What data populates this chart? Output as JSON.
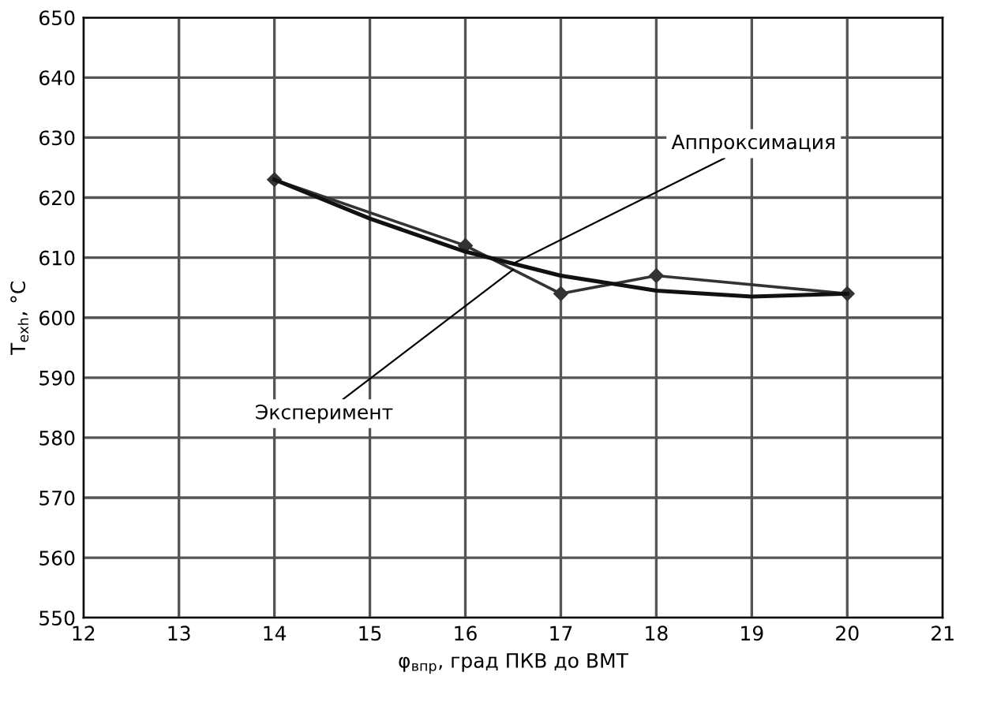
{
  "chart_data": {
    "type": "line",
    "xlabel": "φ$_{впр}$, град ПКВ до ВМТ",
    "ylabel": "T$_{exh}$, °C",
    "xlim": [
      12,
      21
    ],
    "xticks": [
      12,
      13,
      14,
      15,
      16,
      17,
      18,
      19,
      20,
      21
    ],
    "ylim": [
      550,
      650
    ],
    "yticks": [
      550,
      560,
      570,
      580,
      590,
      600,
      610,
      620,
      630,
      640,
      650
    ],
    "grid": true,
    "legend": false,
    "series": [
      {
        "name": "Эксперимент",
        "color": "#333333",
        "x": [
          14,
          16,
          17,
          18,
          20
        ],
        "values": [
          623,
          612,
          604,
          607,
          604
        ],
        "marker": "diamond",
        "line_style": "solid"
      },
      {
        "name": "Аппроксимация",
        "color": "#111111",
        "x": [
          14,
          15,
          16,
          17,
          18,
          19,
          20
        ],
        "values": [
          623,
          616.5,
          611,
          607,
          604.5,
          603.5,
          604
        ],
        "marker": "none",
        "line_style": "solid"
      }
    ]
  }
}
